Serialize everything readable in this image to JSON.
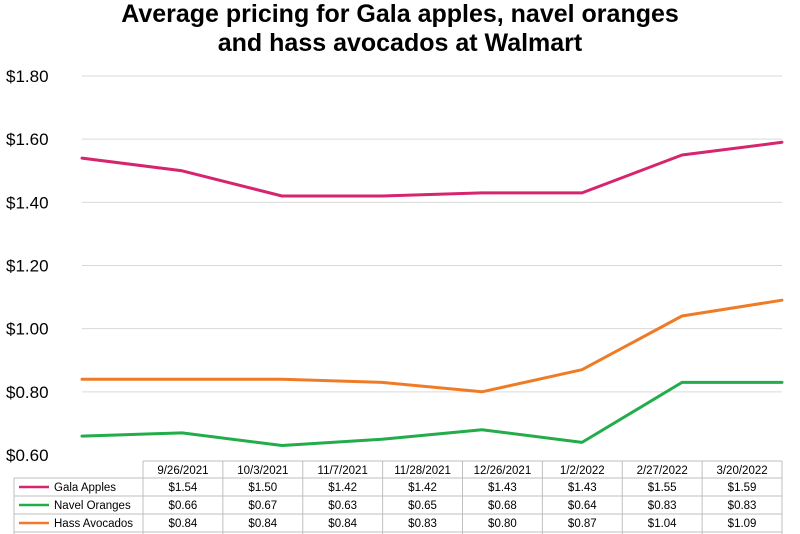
{
  "chart_data": {
    "type": "line",
    "title_lines": [
      "Average pricing for Gala apples, navel oranges",
      "and hass avocados at Walmart"
    ],
    "ylim": [
      0.6,
      1.8
    ],
    "yticks": [
      "$1.80",
      "$1.60",
      "$1.40",
      "$1.20",
      "$1.00",
      "$0.80",
      "$0.60"
    ],
    "categories": [
      "9/26/2021",
      "10/3/2021",
      "11/7/2021",
      "11/28/2021",
      "12/26/2021",
      "1/2/2022",
      "2/27/2022",
      "3/20/2022"
    ],
    "grid": true,
    "series": [
      {
        "name": "Gala Apples",
        "color": "#d6246e",
        "values": [
          1.54,
          1.5,
          1.42,
          1.42,
          1.43,
          1.43,
          1.55,
          1.59
        ],
        "labels": [
          "$1.54",
          "$1.50",
          "$1.42",
          "$1.42",
          "$1.43",
          "$1.43",
          "$1.55",
          "$1.59"
        ]
      },
      {
        "name": "Navel Oranges",
        "color": "#22ac4a",
        "values": [
          0.66,
          0.67,
          0.63,
          0.65,
          0.68,
          0.64,
          0.83,
          0.83
        ],
        "labels": [
          "$0.66",
          "$0.67",
          "$0.63",
          "$0.65",
          "$0.68",
          "$0.64",
          "$0.83",
          "$0.83"
        ]
      },
      {
        "name": "Hass Avocados",
        "color": "#ef7b27",
        "values": [
          0.84,
          0.84,
          0.84,
          0.83,
          0.8,
          0.87,
          1.04,
          1.09
        ],
        "labels": [
          "$0.84",
          "$0.84",
          "$0.84",
          "$0.83",
          "$0.80",
          "$0.87",
          "$1.04",
          "$1.09"
        ]
      }
    ]
  }
}
